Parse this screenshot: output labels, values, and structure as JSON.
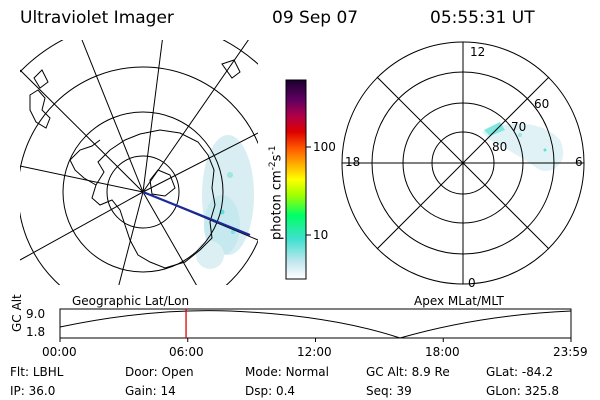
{
  "header": {
    "instrument": "Ultraviolet Imager",
    "date": "09 Sep 07",
    "time": "05:55:31 UT"
  },
  "colorbar": {
    "label": "photon cm",
    "sup1": "-2",
    "mid": "s",
    "sup2": "-1",
    "ticks": [
      {
        "label": "100",
        "value": 100
      },
      {
        "label": "10",
        "value": 10
      }
    ],
    "colors": [
      "#ffffff",
      "#c8e8f0",
      "#40e0d0",
      "#00ff66",
      "#a0ff00",
      "#ffff00",
      "#ffaa00",
      "#ff5500",
      "#dd0000",
      "#b0004a",
      "#600060",
      "#1a0030"
    ]
  },
  "geographic_map": {
    "label": "Geographic Lat/Lon"
  },
  "apex_map": {
    "label": "Apex MLat/MLT",
    "mlt_labels": {
      "top": "12",
      "left": "18",
      "right": "6",
      "bottom": "0"
    },
    "lat_labels": [
      "60",
      "70",
      "80"
    ]
  },
  "altitude_plot": {
    "ylabel": "GC Alt",
    "yticks": [
      "9.0",
      "1.8"
    ],
    "xticks": [
      "00:00",
      "06:00",
      "12:00",
      "18:00",
      "23:59"
    ],
    "current_time_hours": 5.92
  },
  "info": {
    "row1": [
      {
        "label": "Flt:",
        "value": "LBHL"
      },
      {
        "label": "Door:",
        "value": "Open"
      },
      {
        "label": "Mode:",
        "value": "Normal"
      },
      {
        "label": "GC Alt:",
        "value": "8.9 Re"
      },
      {
        "label": "GLat:",
        "value": "-84.2"
      }
    ],
    "row2": [
      {
        "label": "IP:",
        "value": "36.0"
      },
      {
        "label": "Gain:",
        "value": "14"
      },
      {
        "label": "Dsp:",
        "value": "0.4"
      },
      {
        "label": "Seq:",
        "value": "39"
      },
      {
        "label": "GLon:",
        "value": "325.8"
      }
    ]
  }
}
